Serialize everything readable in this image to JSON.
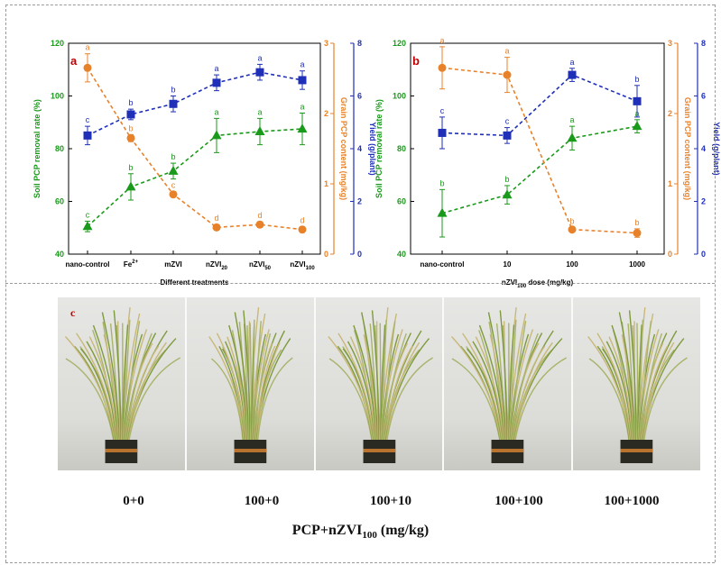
{
  "chart_data": [
    {
      "type": "line",
      "panel_label": "a",
      "xlabel": "Different treatments",
      "categories": [
        "nano-control",
        "Fe²⁺",
        "mZVI",
        "nZVI20",
        "nZVI50",
        "nZVI100"
      ],
      "category_display": [
        {
          "base": "nano-control",
          "sup": "",
          "sub": ""
        },
        {
          "base": "Fe",
          "sup": "2+",
          "sub": ""
        },
        {
          "base": "mZVI",
          "sup": "",
          "sub": ""
        },
        {
          "base": "nZVI",
          "sup": "",
          "sub": "20"
        },
        {
          "base": "nZVI",
          "sup": "",
          "sub": "50"
        },
        {
          "base": "nZVI",
          "sup": "",
          "sub": "100"
        }
      ],
      "axes": {
        "left": {
          "label": "Soil PCP removal rate (%)",
          "range": [
            40,
            120
          ],
          "ticks": [
            40,
            60,
            80,
            100,
            120
          ],
          "color": "#1a9a1a"
        },
        "right1": {
          "label": "Grain PCP content (mg/kg)",
          "range": [
            0,
            3
          ],
          "ticks": [
            0,
            1,
            2,
            3
          ],
          "color": "#e8822a"
        },
        "right2": {
          "label": "Yield (g/plant)",
          "range": [
            0,
            8
          ],
          "ticks": [
            0,
            2,
            4,
            6,
            8
          ],
          "color": "#1f2fb8"
        }
      },
      "series": [
        {
          "name": "Soil PCP removal rate",
          "axis": "left",
          "color": "#1a9a1a",
          "marker": "triangle",
          "values": [
            50.5,
            65.5,
            71.5,
            85,
            86.5,
            87.5
          ],
          "errors": [
            2,
            5,
            3,
            6.5,
            5,
            6
          ],
          "letters": [
            "c",
            "b",
            "b",
            "a",
            "a",
            "a"
          ]
        },
        {
          "name": "Grain PCP content",
          "axis": "right1",
          "color": "#e8822a",
          "marker": "circle",
          "values": [
            2.65,
            1.65,
            0.85,
            0.38,
            0.42,
            0.35
          ],
          "errors": [
            0.2,
            0.05,
            0.04,
            0.04,
            0.04,
            0.04
          ],
          "letters": [
            "a",
            "b",
            "c",
            "d",
            "d",
            "d"
          ]
        },
        {
          "name": "Yield",
          "axis": "right2",
          "color": "#1f2fb8",
          "marker": "square",
          "values": [
            4.5,
            5.3,
            5.7,
            6.5,
            6.9,
            6.6
          ],
          "errors": [
            0.35,
            0.2,
            0.3,
            0.3,
            0.3,
            0.35
          ],
          "letters": [
            "c",
            "b",
            "b",
            "a",
            "a",
            "a"
          ]
        }
      ]
    },
    {
      "type": "line",
      "panel_label": "b",
      "xlabel": "nZVI100 dose (mg/kg)",
      "xlabel_display": {
        "pre": "nZVI",
        "sub": "100",
        "post": " dose (mg/kg)"
      },
      "categories": [
        "nano-control",
        "10",
        "100",
        "1000"
      ],
      "axes": {
        "left": {
          "label": "Soil PCP removal rate (%)",
          "range": [
            40,
            120
          ],
          "ticks": [
            40,
            60,
            80,
            100,
            120
          ],
          "color": "#1a9a1a"
        },
        "right1": {
          "label": "Grain PCP content (mg/kg)",
          "range": [
            0,
            3
          ],
          "ticks": [
            0,
            1,
            2,
            3
          ],
          "color": "#e8822a"
        },
        "right2": {
          "label": "Yield (g/plant)",
          "range": [
            0,
            8
          ],
          "ticks": [
            0,
            2,
            4,
            6,
            8
          ],
          "color": "#1f2fb8"
        }
      },
      "series": [
        {
          "name": "Soil PCP removal rate",
          "axis": "left",
          "color": "#1a9a1a",
          "marker": "triangle",
          "values": [
            55.5,
            62.5,
            84,
            88.5
          ],
          "errors": [
            9,
            3.5,
            4.5,
            2.5
          ],
          "letters": [
            "b",
            "b",
            "a",
            "a"
          ]
        },
        {
          "name": "Grain PCP content",
          "axis": "right1",
          "color": "#e8822a",
          "marker": "circle",
          "values": [
            2.65,
            2.55,
            0.35,
            0.3
          ],
          "errors": [
            0.3,
            0.25,
            0.03,
            0.06
          ],
          "letters": [
            "a",
            "a",
            "b",
            "b"
          ]
        },
        {
          "name": "Yield",
          "axis": "right2",
          "color": "#1f2fb8",
          "marker": "square",
          "values": [
            4.6,
            4.5,
            6.8,
            5.8
          ],
          "errors": [
            0.6,
            0.3,
            0.25,
            0.6
          ],
          "letters": [
            "c",
            "c",
            "a",
            "b"
          ]
        }
      ]
    }
  ],
  "photo_panel": {
    "label": "c",
    "treatments": [
      "0+0",
      "100+0",
      "100+10",
      "100+100",
      "100+1000"
    ],
    "caption_main": "PCP+nZVI",
    "caption_sub": "100",
    "caption_unit": " (mg/kg)"
  }
}
